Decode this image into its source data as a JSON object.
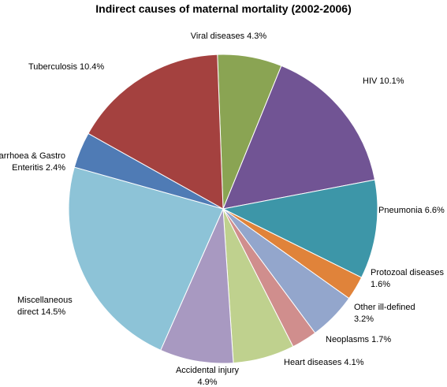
{
  "chart_data": {
    "type": "pie",
    "title": "Indirect causes of maternal mortality (2002-2006)",
    "series": [
      {
        "name": "",
        "slices": [
          {
            "label": "Viral diseases",
            "value": 4.3,
            "display": [
              "Viral diseases 4.3%"
            ],
            "color": "#8aa453"
          },
          {
            "label": "HIV",
            "value": 10.1,
            "display": [
              "HIV 10.1%"
            ],
            "color": "#715494"
          },
          {
            "label": "Pneumonia",
            "value": 6.6,
            "display": [
              "Pneumonia 6.6%"
            ],
            "color": "#3d96a8"
          },
          {
            "label": "Protozoal diseases",
            "value": 1.6,
            "display": [
              "Protozoal diseases",
              "1.6%"
            ],
            "color": "#e0833a"
          },
          {
            "label": "Other ill-defined",
            "value": 3.2,
            "display": [
              "Other ill-defined",
              "3.2%"
            ],
            "color": "#93a6cc"
          },
          {
            "label": "Neoplasms",
            "value": 1.7,
            "display": [
              "Neoplasms 1.7%"
            ],
            "color": "#d08e8d"
          },
          {
            "label": "Heart diseases",
            "value": 4.1,
            "display": [
              "Heart diseases 4.1%"
            ],
            "color": "#bfd18e"
          },
          {
            "label": "Accidental injury",
            "value": 4.9,
            "display": [
              "Accidental injury",
              "4.9%"
            ],
            "color": "#a899c1"
          },
          {
            "label": "Miscellaneous direct",
            "value": 14.5,
            "display": [
              "Miscellaneous",
              "direct 14.5%"
            ],
            "color": "#8dc3d7"
          },
          {
            "label": "Diarrhoea & Gastro Enteritis",
            "value": 2.4,
            "display": [
              "Diarrhoea & Gastro",
              "Enteritis 2.4%"
            ],
            "color": "#4f7bb5"
          },
          {
            "label": "Tuberculosis",
            "value": 10.4,
            "display": [
              "Tuberculosis 10.4%"
            ],
            "color": "#a4413f"
          }
        ]
      }
    ],
    "legend": "none"
  }
}
